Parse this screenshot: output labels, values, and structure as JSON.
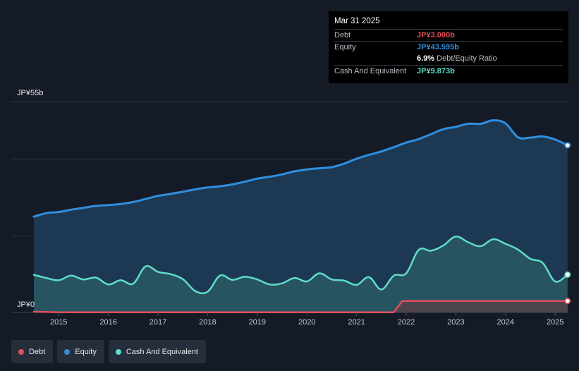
{
  "tooltip": {
    "date": "Mar 31 2025",
    "debt_label": "Debt",
    "debt_value": "JP¥3.000b",
    "equity_label": "Equity",
    "equity_value": "JP¥43.595b",
    "ratio_value": "6.9%",
    "ratio_label": "Debt/Equity Ratio",
    "cash_label": "Cash And Equivalent",
    "cash_value": "JP¥9.873b"
  },
  "legend": [
    {
      "label": "Debt",
      "color": "#e0505b"
    },
    {
      "label": "Equity",
      "color": "#2f8fe0"
    },
    {
      "label": "Cash And Equivalent",
      "color": "#5fdccb"
    }
  ],
  "chart_data": {
    "type": "area",
    "title": "",
    "xlabel": "",
    "ylabel": "",
    "ylim": [
      0,
      55
    ],
    "y_tick_labels": [
      {
        "value": 55,
        "label": "JP¥55b"
      },
      {
        "value": 0,
        "label": "JP¥0"
      }
    ],
    "x_tick_labels": [
      "2015",
      "2016",
      "2017",
      "2018",
      "2019",
      "2020",
      "2021",
      "2022",
      "2023",
      "2024",
      "2025"
    ],
    "xlim": [
      2014.5,
      2025.25
    ],
    "series": [
      {
        "name": "Equity",
        "color": "#2f8fe0",
        "x": [
          2014.5,
          2014.75,
          2015.0,
          2015.25,
          2015.5,
          2015.75,
          2016.0,
          2016.25,
          2016.5,
          2016.75,
          2017.0,
          2017.25,
          2017.5,
          2017.75,
          2018.0,
          2018.25,
          2018.5,
          2018.75,
          2019.0,
          2019.25,
          2019.5,
          2019.75,
          2020.0,
          2020.25,
          2020.5,
          2020.75,
          2021.0,
          2021.25,
          2021.5,
          2021.75,
          2022.0,
          2022.25,
          2022.5,
          2022.75,
          2023.0,
          2023.25,
          2023.5,
          2023.75,
          2024.0,
          2024.25,
          2024.5,
          2024.75,
          2025.0,
          2025.25
        ],
        "values": [
          25.0,
          25.9,
          26.2,
          26.8,
          27.3,
          27.8,
          28.0,
          28.3,
          28.8,
          29.6,
          30.4,
          30.9,
          31.5,
          32.1,
          32.6,
          32.9,
          33.4,
          34.1,
          34.9,
          35.4,
          36.0,
          36.8,
          37.3,
          37.6,
          37.9,
          38.8,
          40.1,
          41.1,
          42.0,
          43.1,
          44.3,
          45.2,
          46.5,
          47.8,
          48.4,
          49.2,
          49.2,
          50.1,
          49.3,
          45.7,
          45.6,
          45.9,
          45.1,
          43.595
        ]
      },
      {
        "name": "Cash And Equivalent",
        "color": "#5fdccb",
        "x": [
          2014.5,
          2014.75,
          2015.0,
          2015.25,
          2015.5,
          2015.75,
          2016.0,
          2016.25,
          2016.5,
          2016.75,
          2017.0,
          2017.25,
          2017.5,
          2017.75,
          2018.0,
          2018.25,
          2018.5,
          2018.75,
          2019.0,
          2019.25,
          2019.5,
          2019.75,
          2020.0,
          2020.25,
          2020.5,
          2020.75,
          2021.0,
          2021.25,
          2021.5,
          2021.75,
          2022.0,
          2022.25,
          2022.5,
          2022.75,
          2023.0,
          2023.25,
          2023.5,
          2023.75,
          2024.0,
          2024.25,
          2024.5,
          2024.75,
          2025.0,
          2025.25
        ],
        "values": [
          9.8,
          9.0,
          8.4,
          9.6,
          8.6,
          9.1,
          7.3,
          8.4,
          7.5,
          12.0,
          10.6,
          10.0,
          8.7,
          5.6,
          5.4,
          9.6,
          8.5,
          9.3,
          8.6,
          7.3,
          7.6,
          9.0,
          8.1,
          10.2,
          8.6,
          8.3,
          7.2,
          9.2,
          6.0,
          9.6,
          10.2,
          16.3,
          16.1,
          17.5,
          19.8,
          18.3,
          17.3,
          19.1,
          17.9,
          16.4,
          14.0,
          12.9,
          8.1,
          9.873
        ]
      },
      {
        "name": "Debt",
        "color": "#e0505b",
        "x": [
          2014.5,
          2015.0,
          2016.0,
          2017.0,
          2018.0,
          2019.0,
          2020.0,
          2021.0,
          2021.75,
          2021.92,
          2022.0,
          2023.0,
          2024.0,
          2025.0,
          2025.25
        ],
        "values": [
          0.2,
          0.05,
          0.05,
          0.05,
          0.05,
          0.05,
          0.05,
          0.05,
          0.05,
          3.0,
          3.0,
          3.0,
          3.0,
          3.0,
          3.0
        ]
      }
    ],
    "legend_position": "bottom-left",
    "grid": true
  }
}
